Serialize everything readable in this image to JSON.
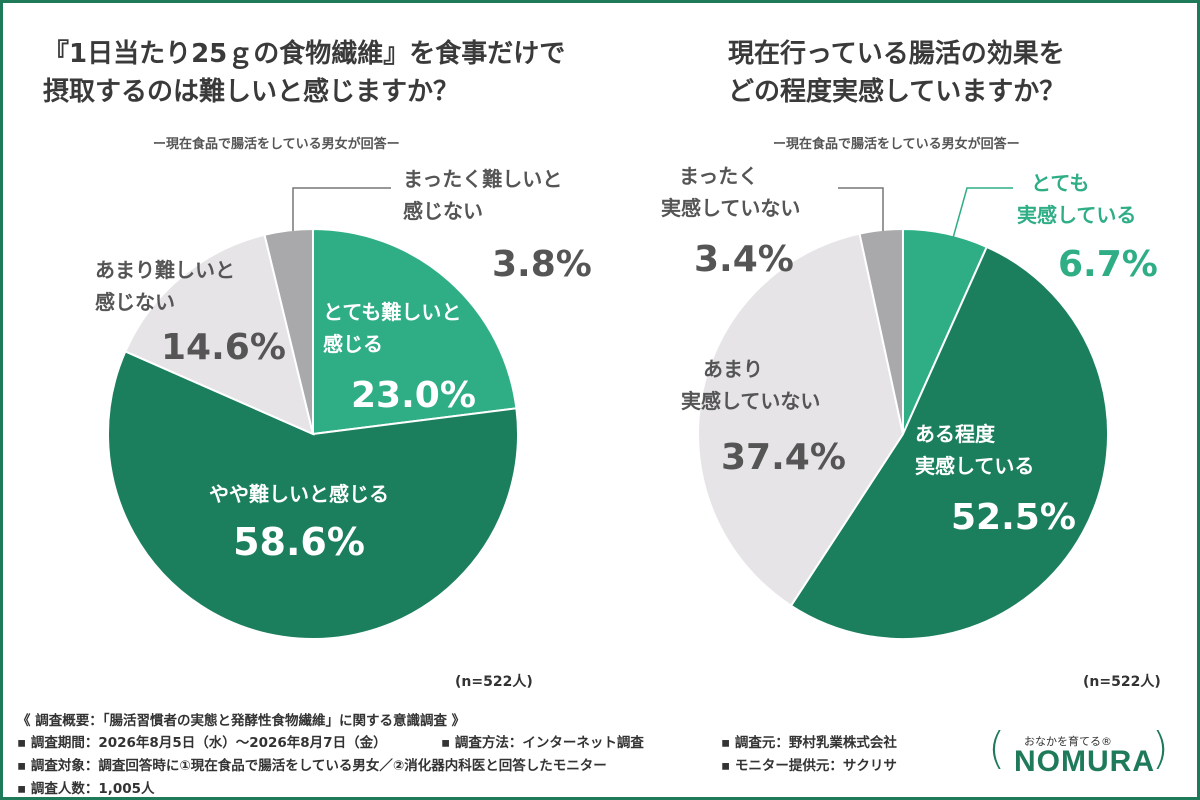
{
  "survey_info": {
    "heading": "《 調査概要：「腸活習慣者の実態と発酵性食物繊維」に関する意識調査 》",
    "period": "▪ 調査期間：2026年8月5日（水）～2026年8月7日（金）",
    "method": "▪ 調査方法：インターネット調査",
    "conductor": "▪ 調査元：野村乳業株式会社",
    "target": "▪ 調査対象：調査回答時に①現在食品で腸活をしている男女／②消化器内科医と回答したモニター",
    "monitor_provider": "▪ モニター提供元：サクリサ",
    "respondents": "▪ 調査人数：1,005人"
  },
  "logo": {
    "tagline": "おなかを育てる®",
    "brand": "NOMURA",
    "paren_left": "(",
    "paren_right": "("
  },
  "colors": {
    "dark_green": "#1b7f5e",
    "light_green": "#2fae86",
    "light_gray": "#e6e4e7",
    "mid_gray": "#a9a8aa",
    "text_gray": "#555555"
  },
  "chart_data": [
    {
      "type": "pie",
      "title_lines": [
        "『1日当たり25ｇの食物繊維』を食事だけで",
        "摂取するのは難しいと感じますか？"
      ],
      "subtitle": "ー現在食品で腸活をしている男女が回答ー",
      "n_label": "(n=522人)",
      "slices": [
        {
          "label": "とても難しいと感じる",
          "label_lines": [
            "とても難しいと",
            "感じる"
          ],
          "value": 23.0,
          "display": "23.0%",
          "color": "#2fae86"
        },
        {
          "label": "やや難しいと感じる",
          "label_lines": [
            "やや難しいと感じる"
          ],
          "value": 58.6,
          "display": "58.6%",
          "color": "#1b7f5e"
        },
        {
          "label": "あまり難しいと感じない",
          "label_lines": [
            "あまり難しいと",
            "感じない"
          ],
          "value": 14.6,
          "display": "14.6%",
          "color": "#e6e4e7"
        },
        {
          "label": "まったく難しいと感じない",
          "label_lines": [
            "まったく難しいと",
            "感じない"
          ],
          "value": 3.8,
          "display": "3.8%",
          "color": "#a9a8aa"
        }
      ]
    },
    {
      "type": "pie",
      "title_lines": [
        "現在行っている腸活の効果を",
        "どの程度実感していますか？"
      ],
      "subtitle": "ー現在食品で腸活をしている男女が回答ー",
      "n_label": "(n=522人)",
      "slices": [
        {
          "label": "とても実感している",
          "label_lines": [
            "とても",
            "実感している"
          ],
          "value": 6.7,
          "display": "6.7%",
          "color": "#2fae86"
        },
        {
          "label": "ある程度実感している",
          "label_lines": [
            "ある程度",
            "実感している"
          ],
          "value": 52.5,
          "display": "52.5%",
          "color": "#1b7f5e"
        },
        {
          "label": "あまり実感していない",
          "label_lines": [
            "あまり",
            "実感していない"
          ],
          "value": 37.4,
          "display": "37.4%",
          "color": "#e6e4e7"
        },
        {
          "label": "まったく実感していない",
          "label_lines": [
            "まったく",
            "実感していない"
          ],
          "value": 3.4,
          "display": "3.4%",
          "color": "#a9a8aa"
        }
      ]
    }
  ]
}
